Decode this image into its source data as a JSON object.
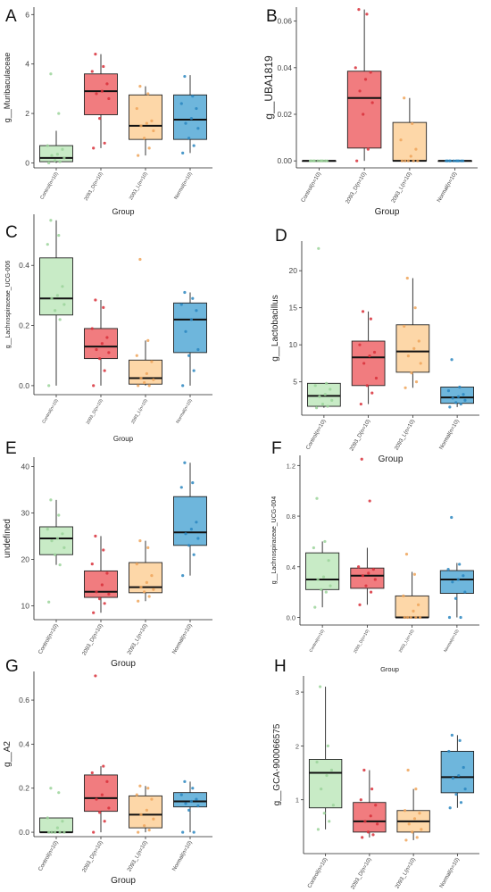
{
  "figure": {
    "groups": [
      "Control(n=10)",
      "2093_D(n=10)",
      "2093_L(n=10)",
      "Normal(n=10)"
    ],
    "group_colors": [
      "#c8ebc6",
      "#f17c7f",
      "#fdd7a8",
      "#6eb6dc"
    ],
    "dot_colors": [
      "#9bd39a",
      "#d8303a",
      "#eea45b",
      "#2a86c0"
    ],
    "xlabel": "Group"
  },
  "chart_data": [
    {
      "panel": "A",
      "type": "box",
      "ylabel": "g__Muribaculaceae",
      "ylim": [
        -0.2,
        6.3
      ],
      "yticks": [
        0,
        2,
        4,
        6
      ],
      "ytick_labels": [
        "0",
        "2",
        "4",
        "6"
      ],
      "boxes": [
        {
          "q1": 0.05,
          "median": 0.2,
          "q3": 0.7,
          "lo": 0.0,
          "hi": 1.3
        },
        {
          "q1": 1.95,
          "median": 2.9,
          "q3": 3.6,
          "lo": 0.6,
          "hi": 4.4
        },
        {
          "q1": 0.95,
          "median": 1.5,
          "q3": 2.75,
          "lo": 0.3,
          "hi": 3.1
        },
        {
          "q1": 0.95,
          "median": 1.75,
          "q3": 2.75,
          "lo": 0.4,
          "hi": 3.55
        }
      ],
      "points": [
        [
          0.0,
          0.05,
          0.1,
          0.2,
          0.3,
          0.35,
          0.55,
          0.7,
          2.0,
          3.6
        ],
        [
          0.6,
          0.8,
          1.8,
          2.6,
          2.8,
          2.9,
          3.2,
          3.7,
          3.9,
          4.4
        ],
        [
          0.3,
          0.6,
          1.0,
          1.3,
          1.5,
          1.6,
          1.7,
          2.2,
          2.8,
          3.1
        ],
        [
          0.4,
          0.7,
          1.0,
          1.4,
          1.6,
          1.8,
          2.2,
          2.4,
          2.7,
          3.5
        ]
      ]
    },
    {
      "panel": "B",
      "type": "box",
      "ylabel": "g__UBA1819",
      "ylim": [
        -0.003,
        0.066
      ],
      "yticks": [
        0,
        0.02,
        0.04,
        0.06
      ],
      "ytick_labels": [
        "0.00",
        "0.02",
        "0.04",
        "0.06"
      ],
      "boxes": [
        {
          "q1": 0,
          "median": 0,
          "q3": 0,
          "lo": 0,
          "hi": 0
        },
        {
          "q1": 0.0055,
          "median": 0.027,
          "q3": 0.0385,
          "lo": 0.0,
          "hi": 0.065
        },
        {
          "q1": 0,
          "median": 0,
          "q3": 0.0165,
          "lo": 0,
          "hi": 0.027
        },
        {
          "q1": 0,
          "median": 0,
          "q3": 0,
          "lo": 0,
          "hi": 0
        }
      ],
      "points": [
        [
          0,
          0,
          0,
          0,
          0,
          0,
          0,
          0,
          0,
          0
        ],
        [
          0.0,
          0.005,
          0.02,
          0.025,
          0.03,
          0.035,
          0.038,
          0.04,
          0.063,
          0.065
        ],
        [
          0,
          0,
          0,
          0,
          0,
          0.002,
          0.005,
          0.009,
          0.016,
          0.027
        ],
        [
          0,
          0,
          0,
          0,
          0,
          0,
          0,
          0,
          0,
          0
        ]
      ]
    },
    {
      "panel": "C",
      "type": "box",
      "ylabel": "g__Lachnospiraceae_UCG-006",
      "ylim": [
        -0.03,
        0.57
      ],
      "yticks": [
        0,
        0.2,
        0.4
      ],
      "ytick_labels": [
        "0.0",
        "0.2",
        "0.4"
      ],
      "boxes": [
        {
          "q1": 0.235,
          "median": 0.29,
          "q3": 0.425,
          "lo": 0.0,
          "hi": 0.55
        },
        {
          "q1": 0.09,
          "median": 0.13,
          "q3": 0.19,
          "lo": 0.0,
          "hi": 0.285
        },
        {
          "q1": 0.005,
          "median": 0.025,
          "q3": 0.085,
          "lo": 0.0,
          "hi": 0.15
        },
        {
          "q1": 0.11,
          "median": 0.22,
          "q3": 0.275,
          "lo": 0.0,
          "hi": 0.31
        }
      ],
      "points": [
        [
          0.0,
          0.22,
          0.25,
          0.27,
          0.29,
          0.3,
          0.33,
          0.47,
          0.5,
          0.55
        ],
        [
          0.0,
          0.05,
          0.09,
          0.11,
          0.12,
          0.14,
          0.16,
          0.19,
          0.26,
          0.285
        ],
        [
          0.0,
          0.0,
          0.01,
          0.02,
          0.025,
          0.04,
          0.08,
          0.1,
          0.15,
          0.42
        ],
        [
          0.0,
          0.05,
          0.1,
          0.12,
          0.18,
          0.22,
          0.25,
          0.27,
          0.29,
          0.31
        ]
      ]
    },
    {
      "panel": "D",
      "type": "box",
      "ylabel": "g__Lactobacillus",
      "ylim": [
        0.5,
        24
      ],
      "yticks": [
        5,
        10,
        15,
        20
      ],
      "ytick_labels": [
        "5",
        "10",
        "15",
        "20"
      ],
      "boxes": [
        {
          "q1": 1.7,
          "median": 3.1,
          "q3": 4.8,
          "lo": 1.5,
          "hi": 4.8
        },
        {
          "q1": 4.5,
          "median": 8.3,
          "q3": 10.5,
          "lo": 2.0,
          "hi": 14.5
        },
        {
          "q1": 6.3,
          "median": 9.1,
          "q3": 12.7,
          "lo": 4.2,
          "hi": 19.0
        },
        {
          "q1": 2.1,
          "median": 2.9,
          "q3": 4.3,
          "lo": 1.6,
          "hi": 4.3
        }
      ],
      "points": [
        [
          1.5,
          1.7,
          2.0,
          2.5,
          3.0,
          3.3,
          4.0,
          4.5,
          4.8,
          23.0
        ],
        [
          2.0,
          3.5,
          4.5,
          5.5,
          7.5,
          8.5,
          9.0,
          10.0,
          13.5,
          14.5
        ],
        [
          4.2,
          5.0,
          6.2,
          7.5,
          8.5,
          9.5,
          10.5,
          12.5,
          15.0,
          19.0
        ],
        [
          1.6,
          2.0,
          2.2,
          2.5,
          2.8,
          3.0,
          3.3,
          3.8,
          4.3,
          8.0
        ]
      ]
    },
    {
      "panel": "E",
      "type": "box",
      "ylabel": "undefined",
      "ylim": [
        7,
        42
      ],
      "yticks": [
        10,
        20,
        30,
        40
      ],
      "ytick_labels": [
        "10",
        "20",
        "30",
        "40"
      ],
      "boxes": [
        {
          "q1": 21.0,
          "median": 24.5,
          "q3": 27.0,
          "lo": 18.8,
          "hi": 32.8
        },
        {
          "q1": 11.8,
          "median": 13.0,
          "q3": 17.5,
          "lo": 8.5,
          "hi": 25.0
        },
        {
          "q1": 12.8,
          "median": 14.0,
          "q3": 19.3,
          "lo": 11.0,
          "hi": 24.0
        },
        {
          "q1": 23.0,
          "median": 25.8,
          "q3": 33.5,
          "lo": 16.5,
          "hi": 40.8
        }
      ],
      "points": [
        [
          10.8,
          18.8,
          21.0,
          22.5,
          24.0,
          24.5,
          25.5,
          26.5,
          29.5,
          32.8
        ],
        [
          8.5,
          10.5,
          11.5,
          12.5,
          13.0,
          14.5,
          17.0,
          19.0,
          22.0,
          25.0
        ],
        [
          11.0,
          12.0,
          13.0,
          13.5,
          14.0,
          15.0,
          16.5,
          19.0,
          22.5,
          24.0
        ],
        [
          16.5,
          21.0,
          23.0,
          24.5,
          25.5,
          26.5,
          28.0,
          35.5,
          36.5,
          40.8
        ]
      ]
    },
    {
      "panel": "F",
      "type": "box",
      "ylabel": "g__Lachnospiraceae_UCG-004",
      "ylim": [
        -0.06,
        1.28
      ],
      "yticks": [
        0,
        0.4,
        0.8,
        1.2
      ],
      "ytick_labels": [
        "0.0",
        "0.4",
        "0.8",
        "1.2"
      ],
      "boxes": [
        {
          "q1": 0.22,
          "median": 0.3,
          "q3": 0.51,
          "lo": 0.08,
          "hi": 0.6
        },
        {
          "q1": 0.23,
          "median": 0.33,
          "q3": 0.39,
          "lo": 0.1,
          "hi": 0.55
        },
        {
          "q1": 0.0,
          "median": 0.0,
          "q3": 0.17,
          "lo": 0.0,
          "hi": 0.36
        },
        {
          "q1": 0.19,
          "median": 0.3,
          "q3": 0.37,
          "lo": 0.0,
          "hi": 0.43
        }
      ],
      "points": [
        [
          0.08,
          0.2,
          0.22,
          0.25,
          0.3,
          0.32,
          0.45,
          0.55,
          0.6,
          0.94
        ],
        [
          0.1,
          0.2,
          0.25,
          0.3,
          0.33,
          0.35,
          0.38,
          0.4,
          0.92,
          1.25
        ],
        [
          0.0,
          0.0,
          0.0,
          0.0,
          0.0,
          0.05,
          0.1,
          0.17,
          0.34,
          0.5
        ],
        [
          0.0,
          0.0,
          0.15,
          0.2,
          0.28,
          0.3,
          0.33,
          0.38,
          0.42,
          0.79
        ]
      ]
    },
    {
      "panel": "G",
      "type": "box",
      "ylabel": "g__A2",
      "ylim": [
        -0.02,
        0.73
      ],
      "yticks": [
        0,
        0.2,
        0.4,
        0.6
      ],
      "ytick_labels": [
        "0.0",
        "0.2",
        "0.4",
        "0.6"
      ],
      "boxes": [
        {
          "q1": 0.0,
          "median": 0.0,
          "q3": 0.065,
          "lo": 0.0,
          "hi": 0.065
        },
        {
          "q1": 0.095,
          "median": 0.155,
          "q3": 0.26,
          "lo": 0.0,
          "hi": 0.3
        },
        {
          "q1": 0.02,
          "median": 0.08,
          "q3": 0.165,
          "lo": 0.0,
          "hi": 0.21
        },
        {
          "q1": 0.115,
          "median": 0.14,
          "q3": 0.18,
          "lo": 0.0,
          "hi": 0.23
        }
      ],
      "points": [
        [
          0.0,
          0.0,
          0.0,
          0.0,
          0.0,
          0.02,
          0.05,
          0.065,
          0.18,
          0.2
        ],
        [
          0.0,
          0.05,
          0.09,
          0.11,
          0.15,
          0.17,
          0.23,
          0.27,
          0.3,
          0.71
        ],
        [
          0.0,
          0.01,
          0.03,
          0.06,
          0.08,
          0.1,
          0.15,
          0.17,
          0.2,
          0.21
        ],
        [
          0.0,
          0.0,
          0.1,
          0.12,
          0.13,
          0.14,
          0.15,
          0.17,
          0.2,
          0.23
        ]
      ]
    },
    {
      "panel": "H",
      "type": "box",
      "ylabel": "g__GCA-900066575",
      "ylim": [
        0.0,
        3.3
      ],
      "yticks": [
        1,
        2,
        3
      ],
      "ytick_labels": [
        "1",
        "2",
        "3"
      ],
      "boxes": [
        {
          "q1": 0.85,
          "median": 1.5,
          "q3": 1.75,
          "lo": 0.45,
          "hi": 3.1
        },
        {
          "q1": 0.4,
          "median": 0.6,
          "q3": 0.95,
          "lo": 0.3,
          "hi": 1.55
        },
        {
          "q1": 0.4,
          "median": 0.6,
          "q3": 0.8,
          "lo": 0.25,
          "hi": 1.2
        },
        {
          "q1": 1.13,
          "median": 1.42,
          "q3": 1.9,
          "lo": 0.85,
          "hi": 2.2
        }
      ],
      "points": [
        [
          0.45,
          0.6,
          0.75,
          0.9,
          1.2,
          1.45,
          1.55,
          1.7,
          2.0,
          3.1
        ],
        [
          0.3,
          0.35,
          0.4,
          0.55,
          0.6,
          0.7,
          0.9,
          1.0,
          1.2,
          1.55
        ],
        [
          0.25,
          0.3,
          0.4,
          0.45,
          0.55,
          0.65,
          0.75,
          0.8,
          1.2,
          1.55
        ],
        [
          0.85,
          0.95,
          1.1,
          1.2,
          1.4,
          1.45,
          1.6,
          1.9,
          2.1,
          2.2
        ]
      ]
    }
  ]
}
